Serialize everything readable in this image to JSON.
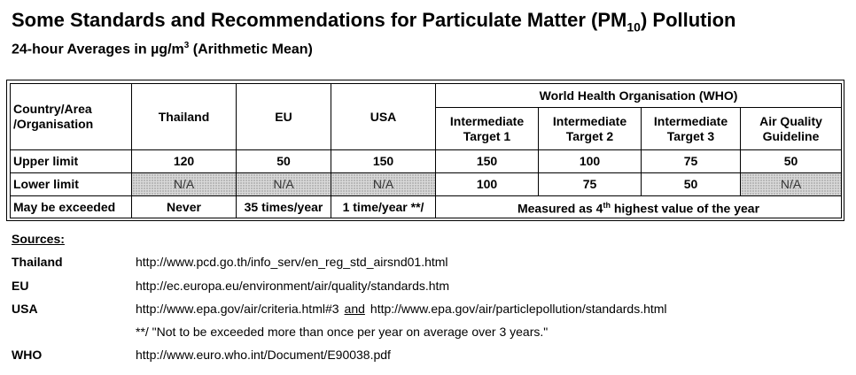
{
  "title": {
    "main": "Some Standards and Recommendations for Particulate Matter (PM",
    "sub": "10",
    "end": ") Pollution"
  },
  "subtitle": {
    "pre": "24-hour Averages in µg/m",
    "sup": "3",
    "post": " (Arithmetic Mean)"
  },
  "table": {
    "header": {
      "country": "Country/Area /Organisation",
      "thailand": "Thailand",
      "eu": "EU",
      "usa": "USA",
      "who": "World Health Organisation (WHO)",
      "it1": "Intermediate Target 1",
      "it2": "Intermediate Target 2",
      "it3": "Intermediate Target 3",
      "aqg": "Air Quality Guideline"
    },
    "upper": {
      "label": "Upper limit",
      "values": [
        "120",
        "50",
        "150",
        "150",
        "100",
        "75",
        "50"
      ]
    },
    "lower": {
      "label": "Lower limit",
      "values": [
        "N/A",
        "N/A",
        "N/A",
        "100",
        "75",
        "50",
        "N/A"
      ]
    },
    "exceeded": {
      "label": "May be exceeded",
      "thailand": "Never",
      "eu": "35 times/year",
      "usa": "1 time/year **/",
      "who_pre": "Measured as 4",
      "who_sup": "th",
      "who_post": " highest value of the year"
    }
  },
  "sources": {
    "heading": "Sources:",
    "thailand_label": "Thailand",
    "thailand_url": "http://www.pcd.go.th/info_serv/en_reg_std_airsnd01.html",
    "eu_label": "EU",
    "eu_url": "http://ec.europa.eu/environment/air/quality/standards.htm",
    "usa_label": "USA",
    "usa_url1": "http://www.epa.gov/air/criteria.html#3",
    "usa_and": "and",
    "usa_url2": "http://www.epa.gov/air/particlepollution/standards.html",
    "usa_note": "**/ \"Not to be exceeded more than once per year on average over 3 years.\"",
    "who_label": "WHO",
    "who_url": "http://www.euro.who.int/Document/E90038.pdf"
  }
}
